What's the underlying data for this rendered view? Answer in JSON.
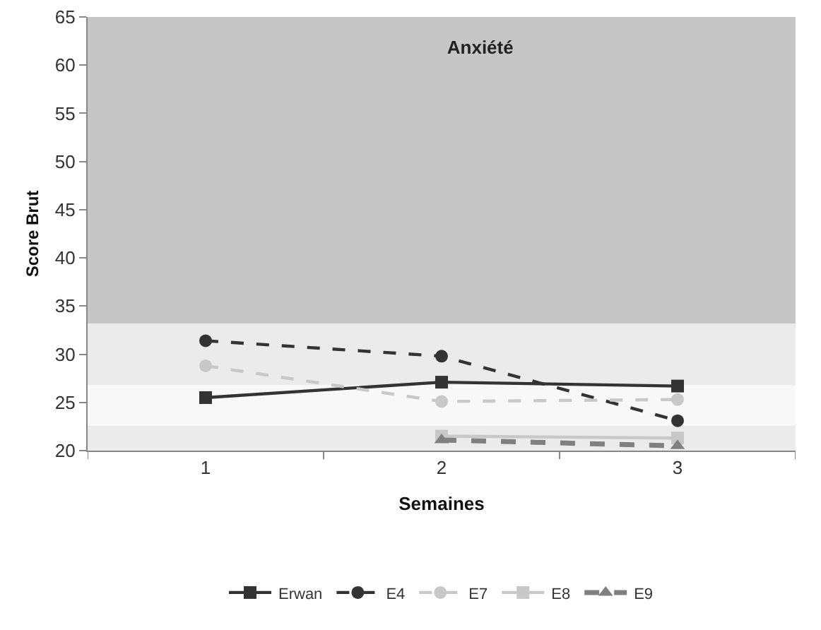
{
  "chart_data": {
    "type": "line",
    "title": "Anxiété",
    "xlabel": "Semaines",
    "ylabel": "Score Brut",
    "categories": [
      "1",
      "2",
      "3"
    ],
    "series": [
      {
        "name": "Erwan",
        "color": "#333333",
        "marker": "square",
        "line_style": "solid",
        "values": [
          25.5,
          27.1,
          26.7
        ]
      },
      {
        "name": "E4",
        "color": "#333333",
        "marker": "circle",
        "line_style": "dashed",
        "values": [
          31.4,
          29.8,
          23.1
        ]
      },
      {
        "name": "E7",
        "color": "#c8c8c8",
        "marker": "circle",
        "line_style": "dashed",
        "values": [
          28.8,
          25.1,
          25.3
        ]
      },
      {
        "name": "E8",
        "color": "#c8c8c8",
        "marker": "square",
        "line_style": "solid",
        "values": [
          null,
          21.5,
          21.3
        ]
      },
      {
        "name": "E9",
        "color": "#808080",
        "marker": "triangle",
        "line_style": "dashed",
        "values": [
          null,
          21.1,
          20.5
        ]
      }
    ],
    "bands": [
      {
        "axis": "y",
        "from": 20,
        "to": 22.6,
        "color": "#ebebeb"
      },
      {
        "axis": "y",
        "from": 22.6,
        "to": 26.8,
        "color": "#f8f8f8"
      },
      {
        "axis": "y",
        "from": 26.8,
        "to": 33.2,
        "color": "#ebebeb"
      },
      {
        "axis": "y",
        "from": 33.2,
        "to": 65,
        "color": "#c6c6c6"
      }
    ],
    "ylim": [
      20,
      65
    ],
    "yticks": [
      20,
      25,
      30,
      35,
      40,
      45,
      50,
      55,
      60,
      65
    ],
    "grid": false,
    "legend": "bottom"
  }
}
